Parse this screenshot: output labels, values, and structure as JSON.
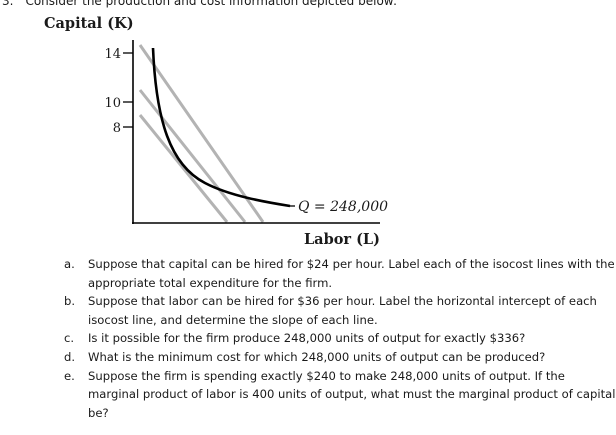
{
  "question": {
    "number": "3.",
    "prompt": "Consider the production and cost information depicted below:"
  },
  "figure": {
    "y_axis_label": "Capital (K)",
    "x_axis_label": "Labor (L)",
    "y_ticks": [
      "14",
      "10",
      "8"
    ],
    "isoquant_label": "Q = 248,000",
    "isocost_lines": [
      {
        "k_intercept": 14
      },
      {
        "k_intercept": 10
      },
      {
        "k_intercept": 8
      }
    ],
    "colors": {
      "axis": "#000000",
      "isoquant": "#000000",
      "isocost": "#b3b3b3"
    }
  },
  "parts": [
    {
      "label": "a.",
      "text": "Suppose that capital can be hired for $24 per hour. Label each of the isocost lines with the appropriate total expenditure for the firm."
    },
    {
      "label": "b.",
      "text": "Suppose that labor can be hired for $36 per hour. Label the horizontal intercept of each isocost line, and determine the slope of each line."
    },
    {
      "label": "c.",
      "text": "Is it possible for the firm produce 248,000 units of output for exactly $336?"
    },
    {
      "label": "d.",
      "text": "What is the minimum cost for which 248,000 units of output can be produced?"
    },
    {
      "label": "e.",
      "text": "Suppose the firm is spending exactly $240 to make 248,000 units of output. If the marginal product of labor is 400 units of output, what must the marginal product of capital be?"
    }
  ]
}
